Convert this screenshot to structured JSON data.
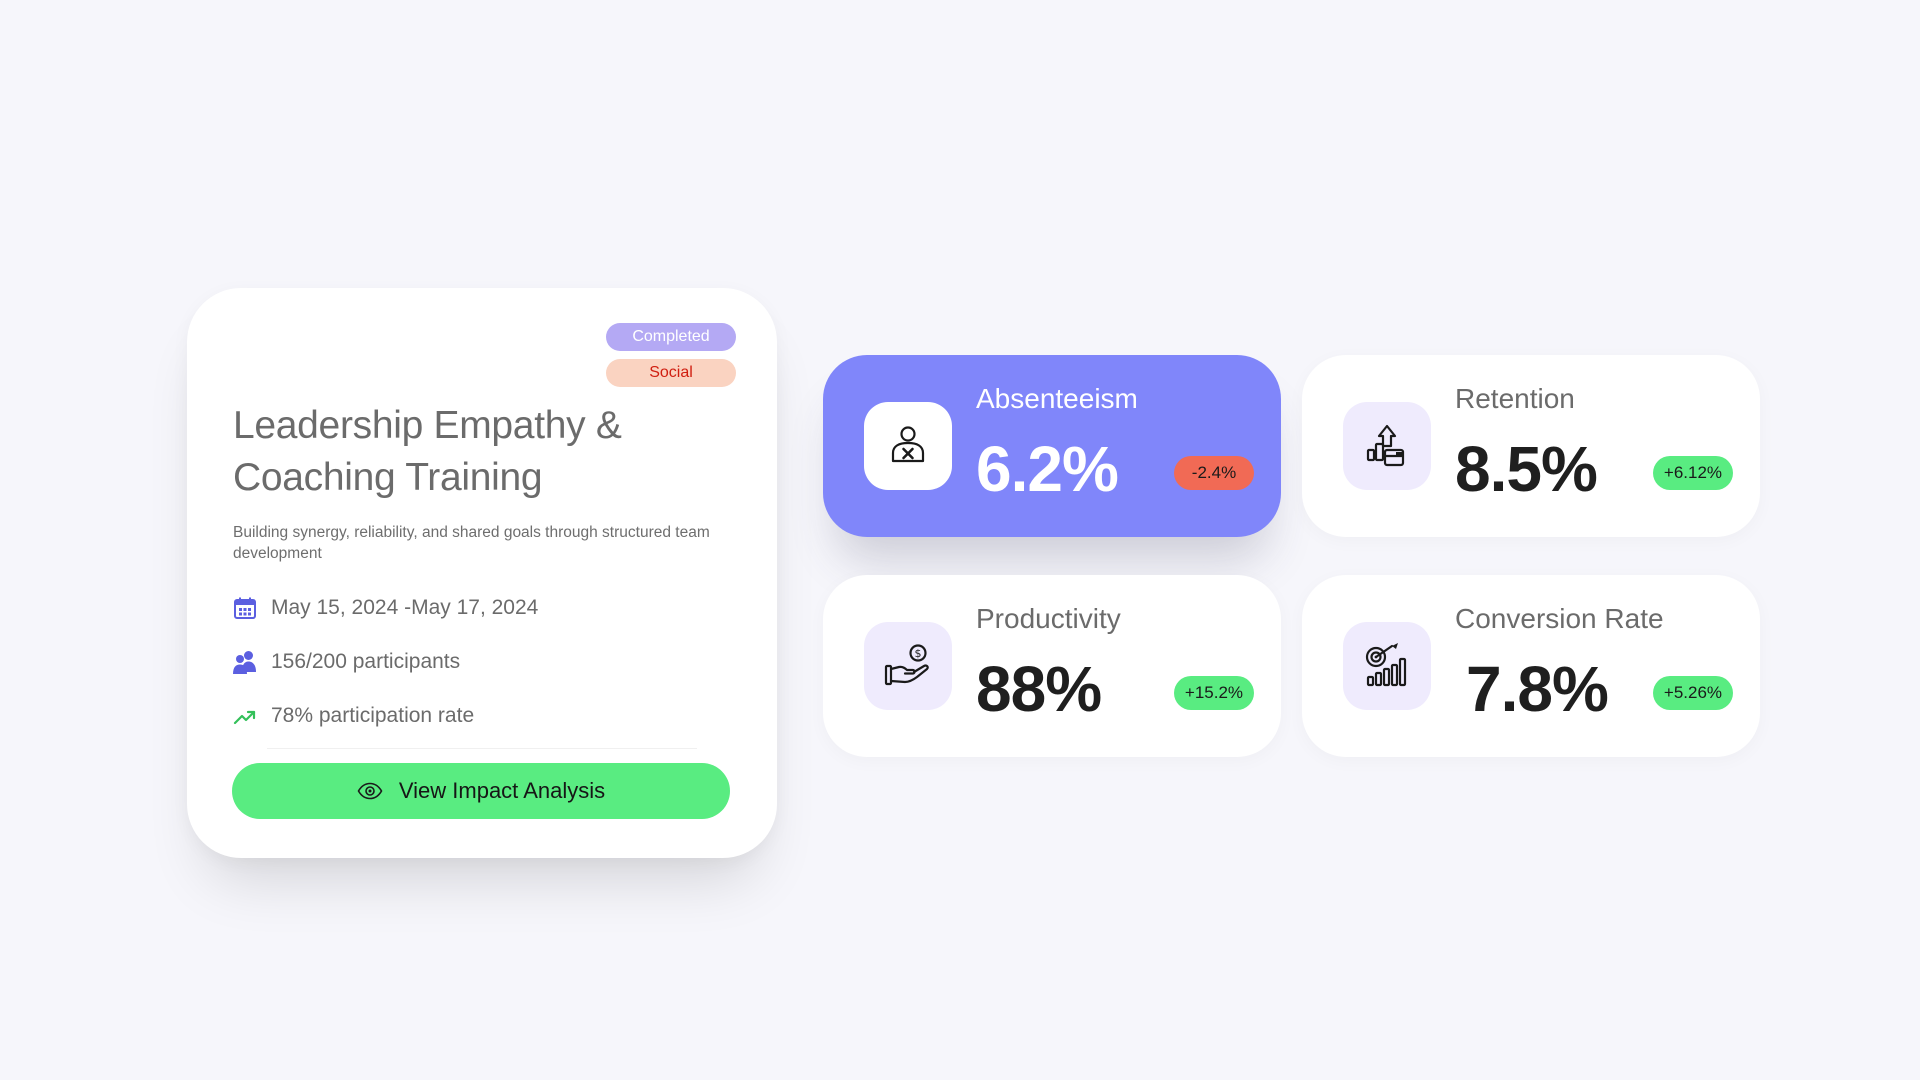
{
  "program": {
    "status_badge": "Completed",
    "category_badge": "Social",
    "title": "Leadership Empathy & Coaching Training",
    "description": "Building synergy, reliability, and shared goals through structured team development",
    "date_range": "May 15, 2024 -May 17, 2024",
    "participants": "156/200 participants",
    "participation_rate": "78% participation rate",
    "button_label": "View Impact Analysis",
    "icons": {
      "date": "calendar-icon",
      "participants": "users-icon",
      "rate": "trend-up-icon",
      "button": "eye-icon"
    }
  },
  "metrics": [
    {
      "label": "Absenteeism",
      "value": "6.2%",
      "change": "-2.4%",
      "trend": "down",
      "icon": "user-absent-icon",
      "active": true
    },
    {
      "label": "Retention",
      "value": "8.5%",
      "change": "+6.12%",
      "trend": "up",
      "icon": "growth-arrow-icon",
      "active": false
    },
    {
      "label": "Productivity",
      "value": "88%",
      "change": "+15.2%",
      "trend": "up",
      "icon": "hand-coin-icon",
      "active": false
    },
    {
      "label": "Conversion Rate",
      "value": "7.8%",
      "change": "+5.26%",
      "trend": "up",
      "icon": "target-chart-icon",
      "active": false
    }
  ],
  "colors": {
    "background": "#f6f6fb",
    "card": "#ffffff",
    "active_card": "#8086fa",
    "icon_box": "#efebfd",
    "positive": "#59ec81",
    "negative": "#f16a55",
    "status_badge": "#b4a9f4",
    "category_badge": "#fad3c1",
    "category_text": "#d01e10",
    "accent_icon": "#5b5fe0",
    "trend_icon": "#34c05a"
  }
}
